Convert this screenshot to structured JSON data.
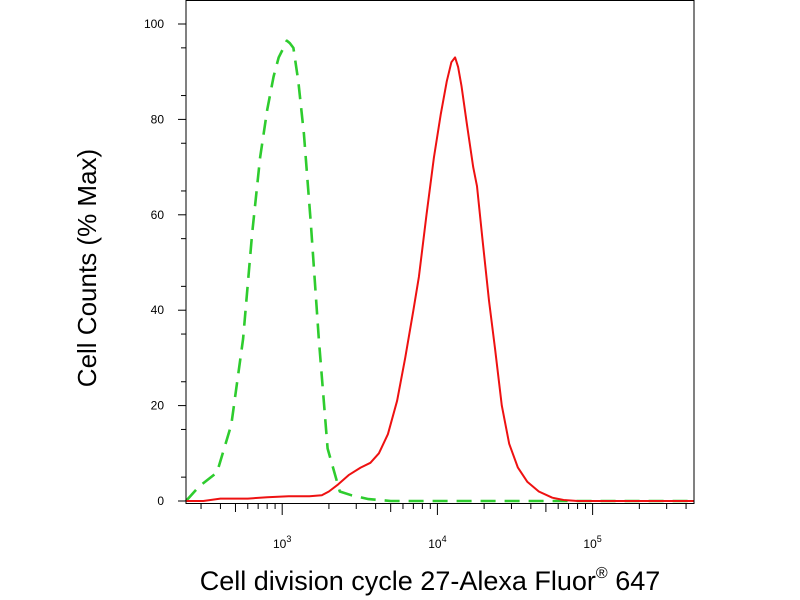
{
  "chart_data": {
    "type": "line",
    "title": "",
    "xlabel": "Cell division cycle 27-Alexa Fluor",
    "xlabel_superscript": "®",
    "xlabel_suffix": " 647",
    "ylabel": "Cell Counts (% Max)",
    "x_scale": "log",
    "xlim": [
      240,
      450000
    ],
    "ylim": [
      0,
      100
    ],
    "y_ticks": [
      0,
      20,
      40,
      60,
      80,
      100
    ],
    "x_ticks": [
      {
        "base": "10",
        "exp": "3",
        "value": 1000
      },
      {
        "base": "10",
        "exp": "4",
        "value": 10000
      },
      {
        "base": "10",
        "exp": "5",
        "value": 100000
      }
    ],
    "grid": false,
    "legend": "none",
    "series": [
      {
        "color": "#2ecc2e",
        "style": "dashed",
        "points": [
          [
            240,
            0
          ],
          [
            290,
            3
          ],
          [
            380,
            6
          ],
          [
            470,
            16
          ],
          [
            560,
            34
          ],
          [
            640,
            56
          ],
          [
            720,
            72
          ],
          [
            800,
            82
          ],
          [
            880,
            89
          ],
          [
            950,
            93
          ],
          [
            1020,
            95
          ],
          [
            1070,
            96.5
          ],
          [
            1120,
            96
          ],
          [
            1180,
            95
          ],
          [
            1270,
            88
          ],
          [
            1380,
            77
          ],
          [
            1530,
            58
          ],
          [
            1720,
            34
          ],
          [
            1960,
            11
          ],
          [
            2350,
            2
          ],
          [
            2800,
            1.2
          ],
          [
            3600,
            0.4
          ],
          [
            5000,
            0
          ],
          [
            10000,
            0
          ],
          [
            30000,
            0
          ],
          [
            450000,
            0
          ]
        ]
      },
      {
        "color": "#ee1111",
        "style": "solid",
        "points": [
          [
            240,
            0
          ],
          [
            310,
            0
          ],
          [
            400,
            0.5
          ],
          [
            600,
            0.5
          ],
          [
            800,
            0.8
          ],
          [
            1100,
            1
          ],
          [
            1500,
            1
          ],
          [
            1800,
            1.2
          ],
          [
            2000,
            2
          ],
          [
            2300,
            3.5
          ],
          [
            2700,
            5.5
          ],
          [
            3200,
            7
          ],
          [
            3700,
            8
          ],
          [
            4200,
            10
          ],
          [
            4800,
            14
          ],
          [
            5500,
            21
          ],
          [
            6200,
            30
          ],
          [
            7000,
            40
          ],
          [
            7600,
            47
          ],
          [
            8500,
            60
          ],
          [
            9500,
            72
          ],
          [
            10500,
            81
          ],
          [
            11500,
            88
          ],
          [
            12300,
            92
          ],
          [
            13000,
            93
          ],
          [
            13600,
            91
          ],
          [
            14300,
            87
          ],
          [
            15500,
            79
          ],
          [
            17000,
            70
          ],
          [
            18000,
            66
          ],
          [
            19500,
            55
          ],
          [
            21500,
            42
          ],
          [
            23500,
            32
          ],
          [
            26000,
            20
          ],
          [
            29000,
            12
          ],
          [
            33000,
            7
          ],
          [
            38000,
            4
          ],
          [
            45000,
            2
          ],
          [
            55000,
            0.7
          ],
          [
            65000,
            0.2
          ],
          [
            80000,
            0
          ],
          [
            200000,
            0
          ],
          [
            450000,
            0
          ]
        ]
      }
    ]
  }
}
